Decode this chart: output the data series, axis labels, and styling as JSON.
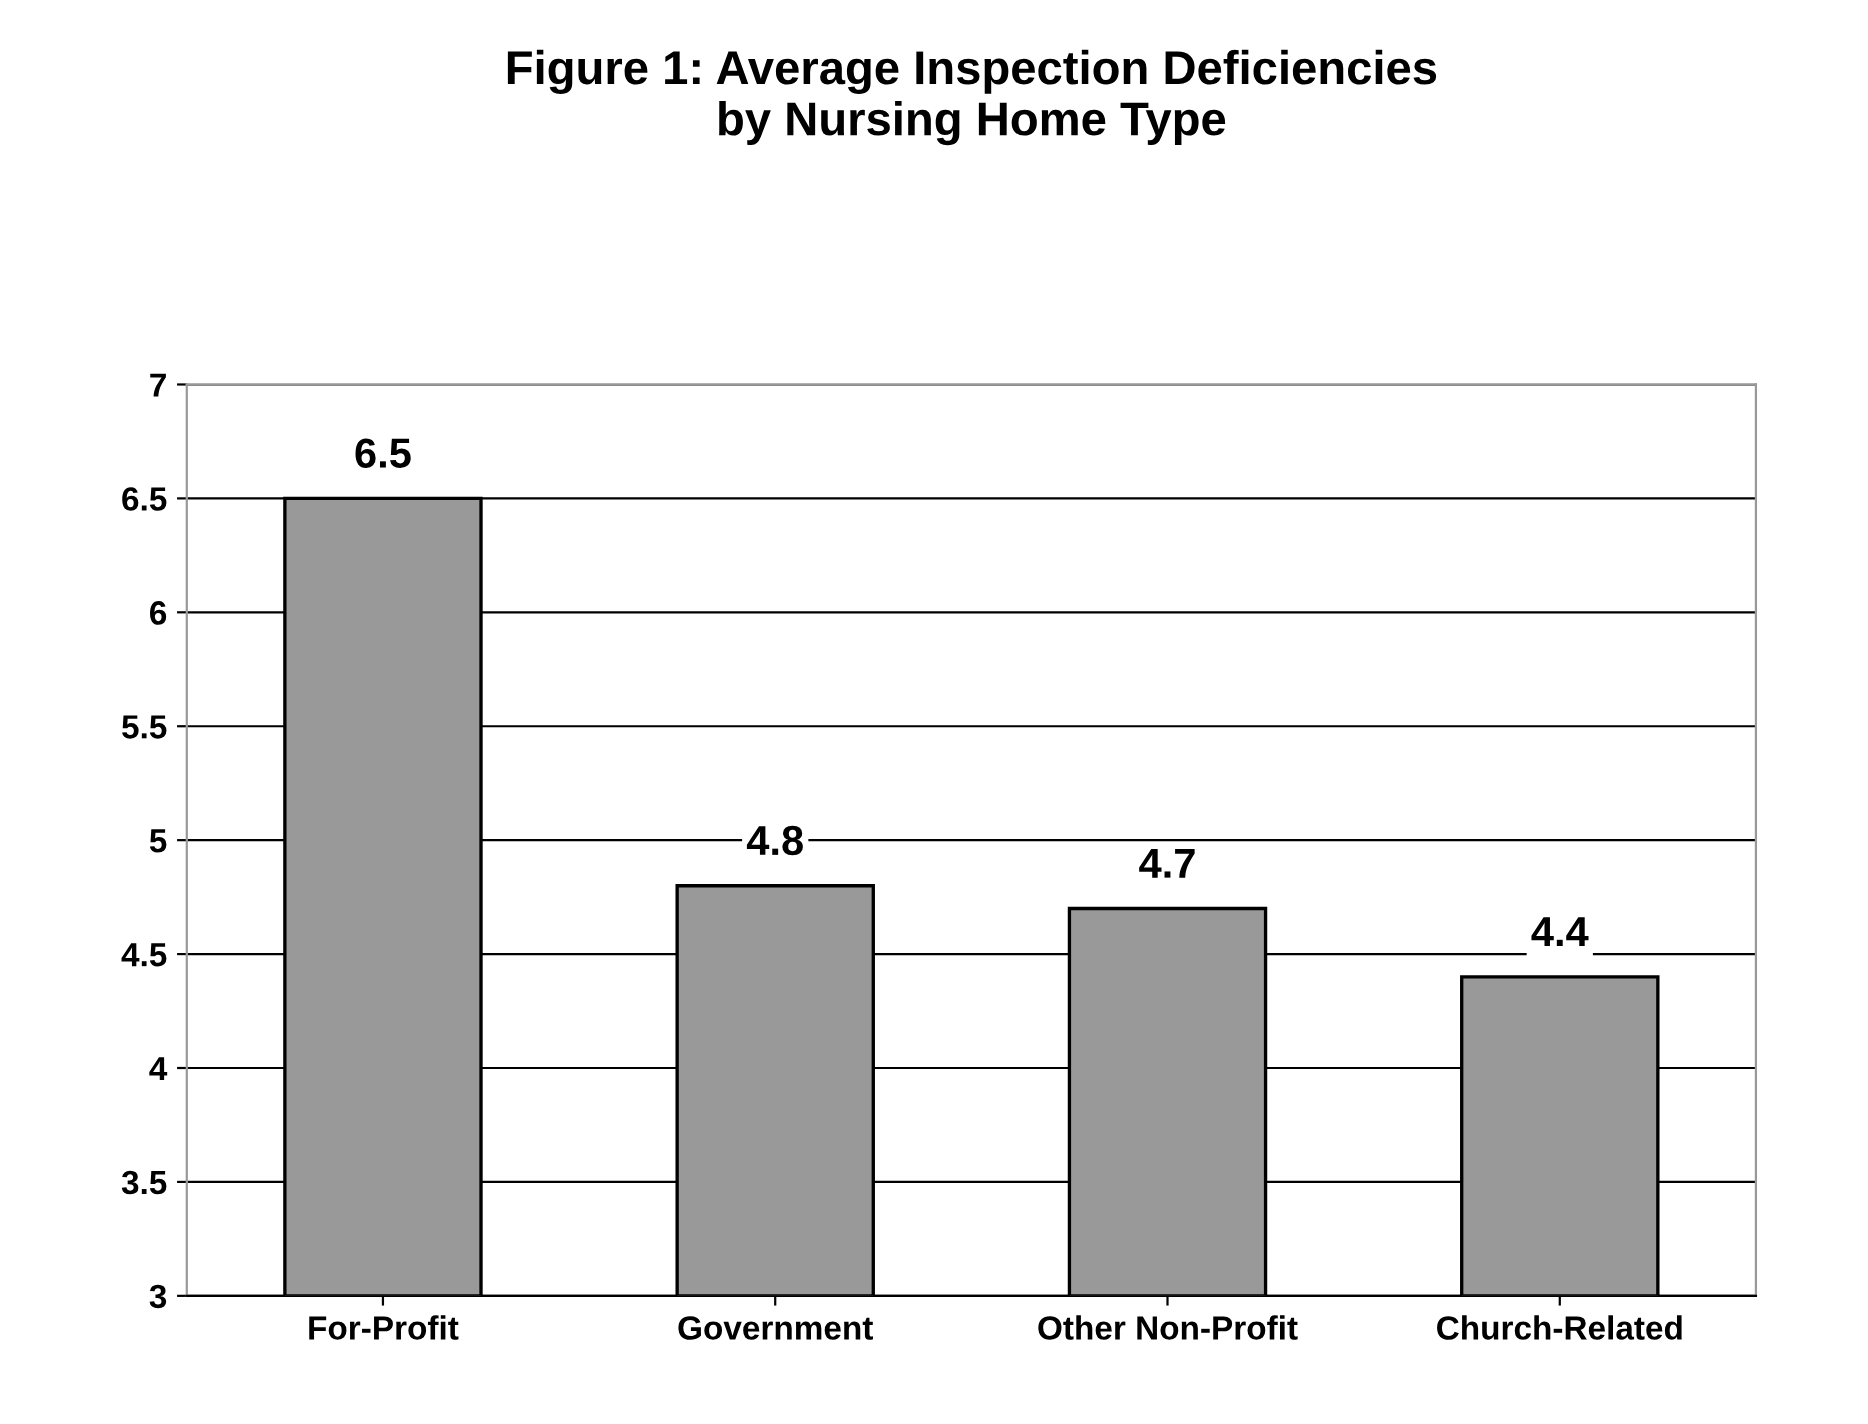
{
  "chart_data": {
    "type": "bar",
    "title": "Figure 1: Average Inspection Deficiencies\nby Nursing Home Type",
    "categories": [
      "For-Profit",
      "Government",
      "Other Non-Profit",
      "Church-Related"
    ],
    "values": [
      6.5,
      4.8,
      4.7,
      4.4
    ],
    "color": "#999999",
    "ylim": [
      3,
      7
    ],
    "yticks": [
      3,
      3.5,
      4,
      4.5,
      5,
      5.5,
      6,
      6.5,
      7
    ],
    "grid": "y",
    "data_labels": true
  }
}
